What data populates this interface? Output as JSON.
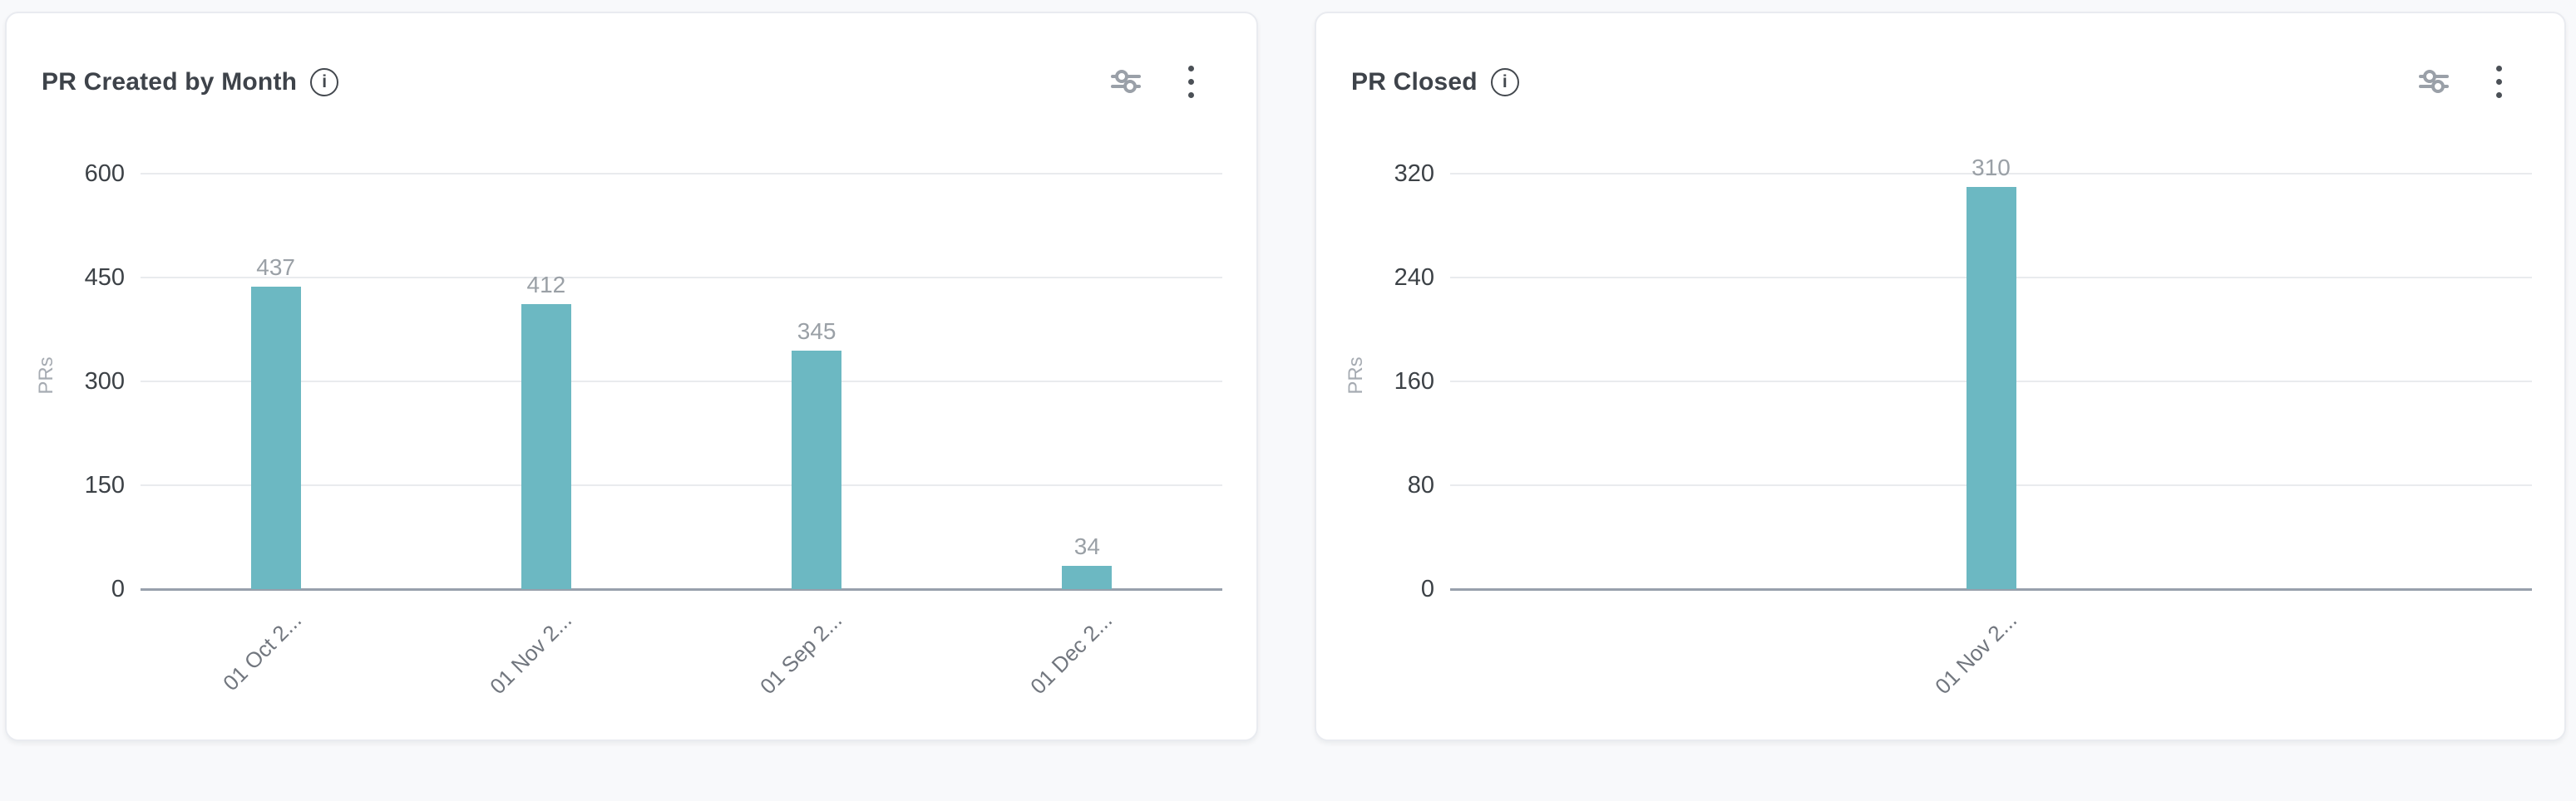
{
  "page": {
    "background_color": "#f8f9fb",
    "card_background": "#ffffff",
    "card_border_color": "#e9ebf0"
  },
  "icons": {
    "info": {
      "name": "info-icon",
      "glyph": "i"
    },
    "filter": {
      "name": "filter-sliders-icon"
    },
    "menu": {
      "name": "kebab-menu-icon"
    }
  },
  "colors": {
    "bar": "#6cb8c2",
    "title_text": "#3e434a",
    "y_tick_text": "#3c4146",
    "x_tick_text": "#71767e",
    "value_label_text": "#9aa0a6",
    "axis_label_text": "#a6abb2",
    "gridline": "#e9ebee",
    "axis_line": "#98a0ac"
  },
  "cards": [
    {
      "title": "PR Created by Month"
    },
    {
      "title": "PR Closed"
    }
  ],
  "chart_data": [
    {
      "type": "bar",
      "title": "PR Created by Month",
      "categories": [
        "01 Oct 2...",
        "01 Nov 2...",
        "01 Sep 2...",
        "01 Dec 2..."
      ],
      "values": [
        437,
        412,
        345,
        34
      ],
      "value_labels": [
        "437",
        "412",
        "345",
        "34"
      ],
      "xlabel": "",
      "ylabel": "PRs",
      "ylim": [
        0,
        600
      ],
      "yticks": [
        600,
        450,
        300,
        150,
        0
      ],
      "bar_color": "#6cb8c2",
      "grid": true,
      "legend": false,
      "x_label_rotation_deg": 45
    },
    {
      "type": "bar",
      "title": "PR Closed",
      "categories": [
        "01 Nov 2..."
      ],
      "values": [
        310
      ],
      "value_labels": [
        "310"
      ],
      "xlabel": "",
      "ylabel": "PRs",
      "ylim": [
        0,
        320
      ],
      "yticks": [
        320,
        240,
        160,
        80,
        0
      ],
      "bar_color": "#6cb8c2",
      "grid": true,
      "legend": false,
      "x_label_rotation_deg": 45
    }
  ]
}
